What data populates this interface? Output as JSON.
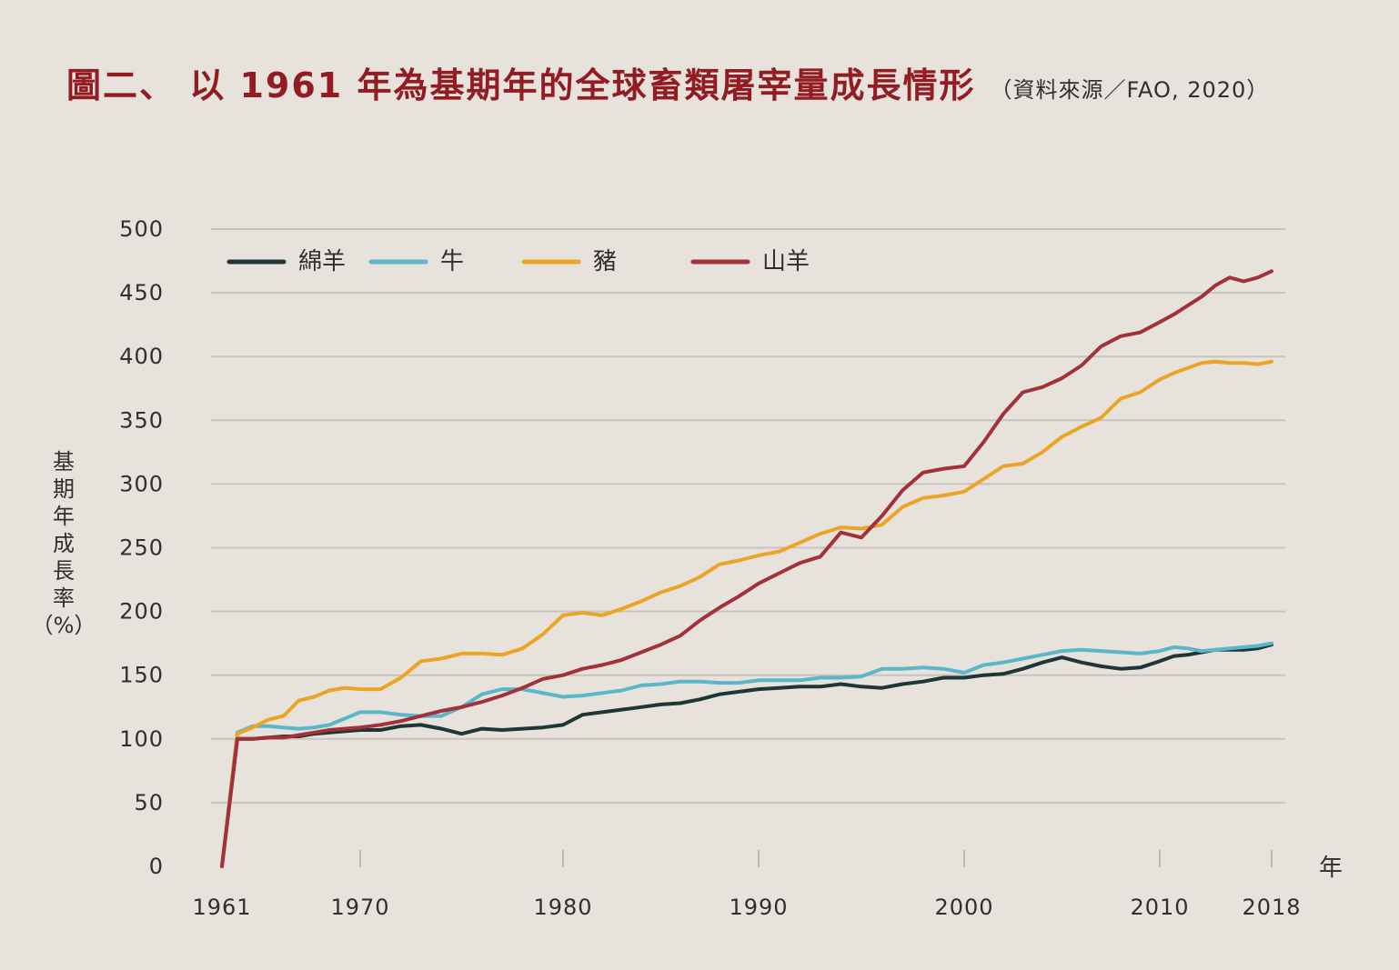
{
  "chart_data": {
    "type": "line",
    "title": "圖二、 以 1961 年為基期年的全球畜類屠宰量成長情形",
    "source": "（資料來源／FAO, 2020）",
    "xlabel": "年",
    "ylabel": "基期年成長率",
    "ylabel_unit": "（%）",
    "ylim": [
      0,
      500
    ],
    "yticks": [
      0,
      50,
      100,
      150,
      200,
      250,
      300,
      350,
      400,
      450,
      500
    ],
    "xticks": [
      1961,
      1970,
      1980,
      1990,
      2000,
      2010,
      2018
    ],
    "grid": true,
    "x": [
      1961,
      1962,
      1963,
      1964,
      1965,
      1966,
      1967,
      1968,
      1969,
      1970,
      1971,
      1972,
      1973,
      1974,
      1975,
      1976,
      1977,
      1978,
      1979,
      1980,
      1981,
      1982,
      1983,
      1984,
      1985,
      1986,
      1987,
      1988,
      1989,
      1990,
      1991,
      1992,
      1993,
      1994,
      1995,
      1996,
      1997,
      1998,
      1999,
      2000,
      2001,
      2002,
      2003,
      2004,
      2005,
      2006,
      2007,
      2008,
      2009,
      2010,
      2011,
      2012,
      2013,
      2014,
      2015,
      2016,
      2017,
      2018
    ],
    "series": [
      {
        "name": "綿羊",
        "color": "#1f3638",
        "values": [
          0,
          100,
          100,
          101,
          102,
          102,
          104,
          105,
          106,
          107,
          107,
          110,
          111,
          108,
          104,
          108,
          107,
          108,
          109,
          111,
          119,
          121,
          123,
          125,
          127,
          128,
          131,
          135,
          137,
          139,
          140,
          141,
          141,
          143,
          141,
          140,
          143,
          145,
          148,
          148,
          150,
          151,
          155,
          160,
          164,
          160,
          157,
          155,
          156,
          161,
          165,
          166,
          168,
          170,
          170,
          170,
          171,
          174
        ]
      },
      {
        "name": "牛",
        "color": "#5ab6c8",
        "values": [
          0,
          105,
          110,
          110,
          109,
          108,
          109,
          111,
          116,
          121,
          121,
          119,
          118,
          118,
          125,
          135,
          139,
          139,
          136,
          133,
          134,
          136,
          138,
          142,
          143,
          145,
          145,
          144,
          144,
          146,
          146,
          146,
          148,
          148,
          149,
          155,
          155,
          156,
          155,
          152,
          158,
          160,
          163,
          166,
          169,
          170,
          169,
          168,
          167,
          169,
          172,
          171,
          169,
          170,
          171,
          172,
          173,
          175
        ]
      },
      {
        "name": "豬",
        "color": "#eba425",
        "values": [
          0,
          104,
          109,
          115,
          118,
          130,
          133,
          138,
          140,
          139,
          139,
          148,
          161,
          163,
          167,
          167,
          166,
          171,
          182,
          197,
          199,
          197,
          202,
          208,
          215,
          220,
          227,
          237,
          240,
          244,
          247,
          254,
          261,
          266,
          265,
          268,
          282,
          289,
          291,
          294,
          304,
          314,
          316,
          325,
          337,
          345,
          352,
          367,
          372,
          382,
          387,
          391,
          395,
          396,
          395,
          395,
          394,
          396
        ]
      },
      {
        "name": "山羊",
        "color": "#a3313a",
        "values": [
          0,
          100,
          100,
          101,
          101,
          103,
          105,
          107,
          108,
          109,
          111,
          114,
          118,
          122,
          125,
          129,
          134,
          140,
          147,
          150,
          155,
          158,
          162,
          168,
          174,
          181,
          193,
          203,
          212,
          222,
          230,
          238,
          243,
          262,
          258,
          275,
          295,
          309,
          312,
          314,
          333,
          355,
          372,
          376,
          383,
          393,
          408,
          416,
          419,
          427,
          433,
          440,
          447,
          456,
          462,
          459,
          462,
          467
        ]
      }
    ]
  }
}
